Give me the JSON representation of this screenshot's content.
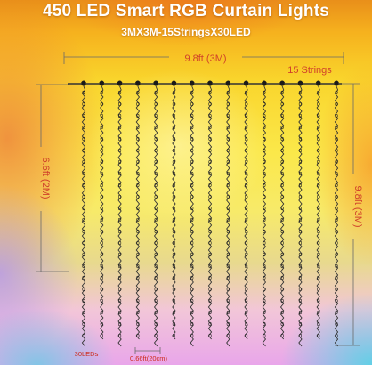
{
  "title": "450 LED Smart RGB Curtain Lights",
  "subtitle": "3MX3M-15StringsX30LED",
  "width_label": "9.8ft  (3M)",
  "strings_label": "15 Strings",
  "left_height_label": "6.6ft  (2M)",
  "right_height_label": "9.8ft  (3M)",
  "leds_label": "30LEDs",
  "spacing_label": "0.66ft(20cm)",
  "string_count": 15,
  "colors": {
    "dimension_text": "#d0412a",
    "strings_text": "#d0412a",
    "small_text": "#cc2a1a",
    "dimension_line": "#6a6a6a",
    "wire": "#333333",
    "title_text": "#ffffff"
  }
}
